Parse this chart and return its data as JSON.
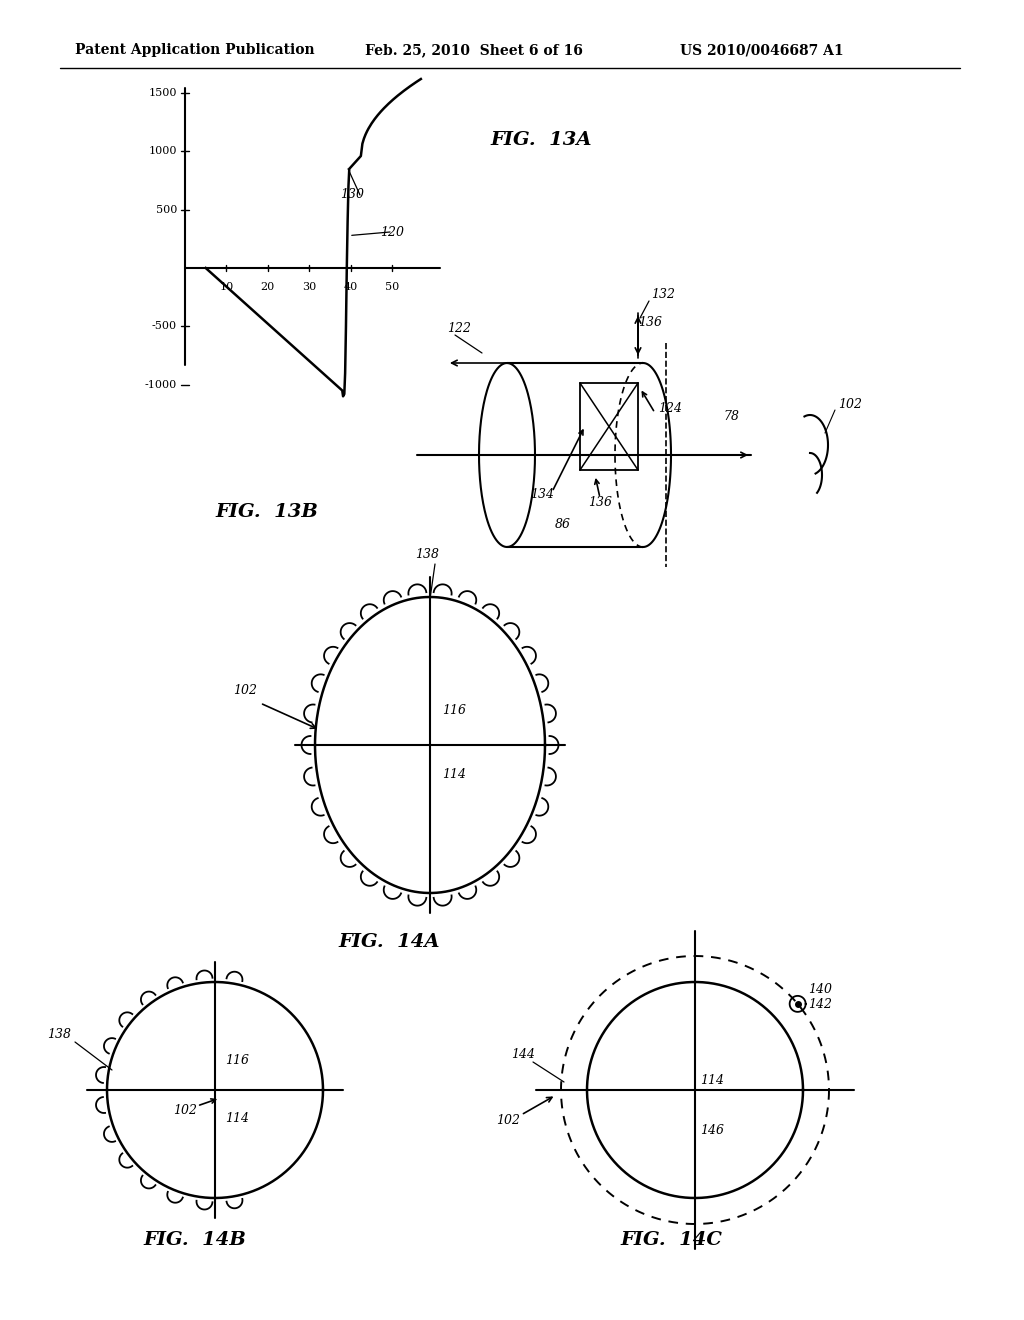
{
  "header_left": "Patent Application Publication",
  "header_mid": "Feb. 25, 2010  Sheet 6 of 16",
  "header_right": "US 2010/0046687 A1",
  "fig13a_label": "FIG.  13A",
  "fig13b_label": "FIG.  13B",
  "fig14a_label": "FIG.  14A",
  "fig14b_label": "FIG.  14B",
  "fig14c_label": "FIG.  14C",
  "bg_color": "#ffffff"
}
